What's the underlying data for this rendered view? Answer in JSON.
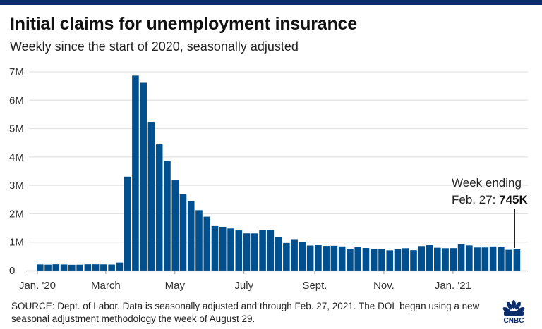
{
  "header": {
    "title": "Initial claims for unemployment insurance",
    "subtitle": "Weekly since the start of 2020, seasonally adjusted"
  },
  "annotation": {
    "line1": "Week ending",
    "line2_prefix": "Feb. 27: ",
    "line2_value": "745K"
  },
  "footer": {
    "source": "SOURCE: Dept. of Labor. Data is seasonally adjusted and through Feb. 27, 2021. The DOL began using a new seasonal adjustment methodology the week of August 29.",
    "logo_text": "CNBC"
  },
  "colors": {
    "bar": "#00508f",
    "topbar": "#0c2d6b",
    "grid": "#e3e3e3",
    "axis": "#999999"
  },
  "chart_data": {
    "type": "bar",
    "title": "Initial claims for unemployment insurance",
    "subtitle": "Weekly since the start of 2020, seasonally adjusted",
    "xlabel": "",
    "ylabel": "",
    "ylim": [
      0,
      7000000
    ],
    "grid": true,
    "y_ticks": [
      {
        "value": 0,
        "label": "0"
      },
      {
        "value": 1000000,
        "label": "1M"
      },
      {
        "value": 2000000,
        "label": "2M"
      },
      {
        "value": 3000000,
        "label": "3M"
      },
      {
        "value": 4000000,
        "label": "4M"
      },
      {
        "value": 5000000,
        "label": "5M"
      },
      {
        "value": 6000000,
        "label": "6M"
      },
      {
        "value": 7000000,
        "label": "7M"
      }
    ],
    "x_ticks": [
      {
        "index": 0,
        "label": "Jan. '20"
      },
      {
        "index": 8.6,
        "label": "March"
      },
      {
        "index": 17.3,
        "label": "May"
      },
      {
        "index": 26,
        "label": "July"
      },
      {
        "index": 34.9,
        "label": "Sept."
      },
      {
        "index": 43.6,
        "label": "Nov."
      },
      {
        "index": 52.3,
        "label": "Jan. '21"
      }
    ],
    "categories": [
      "2020-01-04",
      "2020-01-11",
      "2020-01-18",
      "2020-01-25",
      "2020-02-01",
      "2020-02-08",
      "2020-02-15",
      "2020-02-22",
      "2020-02-29",
      "2020-03-07",
      "2020-03-14",
      "2020-03-21",
      "2020-03-28",
      "2020-04-04",
      "2020-04-11",
      "2020-04-18",
      "2020-04-25",
      "2020-05-02",
      "2020-05-09",
      "2020-05-16",
      "2020-05-23",
      "2020-05-30",
      "2020-06-06",
      "2020-06-13",
      "2020-06-20",
      "2020-06-27",
      "2020-07-04",
      "2020-07-11",
      "2020-07-18",
      "2020-07-25",
      "2020-08-01",
      "2020-08-08",
      "2020-08-15",
      "2020-08-22",
      "2020-08-29",
      "2020-09-05",
      "2020-09-12",
      "2020-09-19",
      "2020-09-26",
      "2020-10-03",
      "2020-10-10",
      "2020-10-17",
      "2020-10-24",
      "2020-10-31",
      "2020-11-07",
      "2020-11-14",
      "2020-11-21",
      "2020-11-28",
      "2020-12-05",
      "2020-12-12",
      "2020-12-19",
      "2020-12-26",
      "2021-01-02",
      "2021-01-09",
      "2021-01-16",
      "2021-01-23",
      "2021-01-30",
      "2021-02-06",
      "2021-02-13",
      "2021-02-20",
      "2021-02-27"
    ],
    "series": [
      {
        "name": "Initial claims",
        "values": [
          215000,
          207000,
          220000,
          214000,
          203000,
          206000,
          219000,
          220000,
          217000,
          211000,
          282000,
          3307000,
          6867000,
          6615000,
          5237000,
          4442000,
          3867000,
          3176000,
          2687000,
          2446000,
          2126000,
          1897000,
          1566000,
          1540000,
          1482000,
          1413000,
          1310000,
          1308000,
          1422000,
          1434000,
          1191000,
          971000,
          1106000,
          1011000,
          881000,
          893000,
          866000,
          873000,
          849000,
          767000,
          842000,
          794000,
          758000,
          751000,
          711000,
          748000,
          787000,
          716000,
          862000,
          892000,
          803000,
          787000,
          790000,
          926000,
          886000,
          812000,
          812000,
          848000,
          841000,
          730000,
          745000
        ]
      }
    ],
    "annotation": {
      "index": 60,
      "text": "Week ending Feb. 27: 745K"
    },
    "source": "SOURCE: Dept. of Labor. Data is seasonally adjusted and through Feb. 27, 2021. The DOL began using a new seasonal adjustment methodology the week of August 29."
  }
}
